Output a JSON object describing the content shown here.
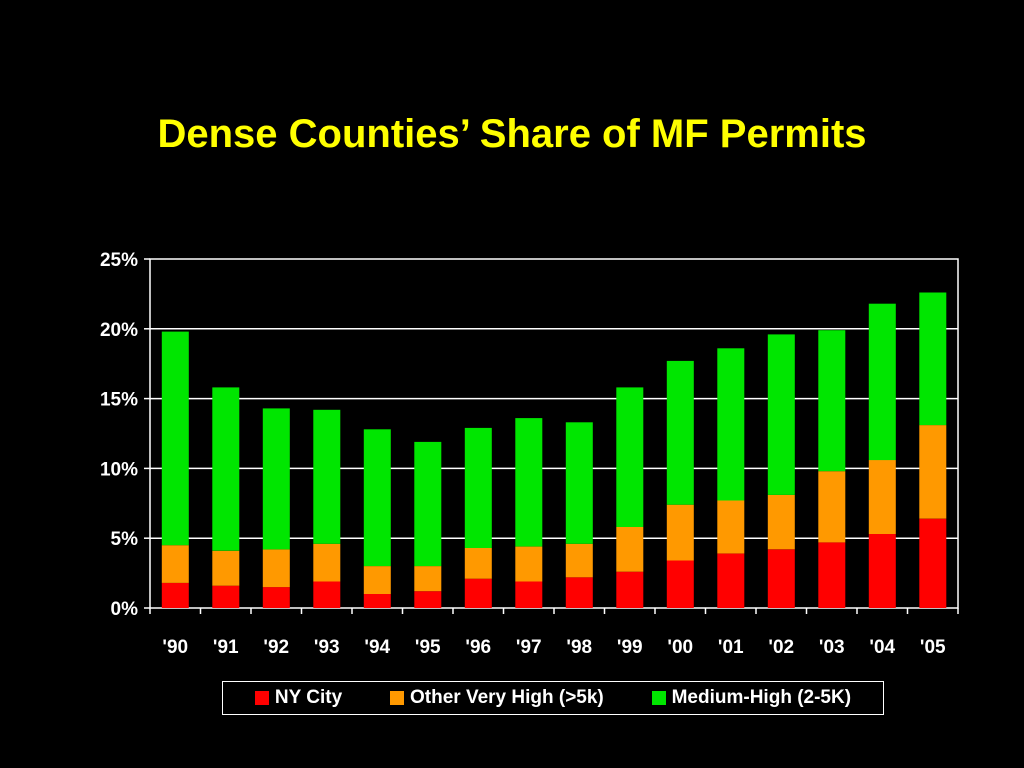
{
  "slide": {
    "title": "Dense Counties’ Share of MF Permits"
  },
  "chart_data": {
    "type": "bar",
    "stacked": true,
    "title": "",
    "xlabel": "",
    "ylabel": "",
    "categories": [
      "'90",
      "'91",
      "'92",
      "'93",
      "'94",
      "'95",
      "'96",
      "'97",
      "'98",
      "'99",
      "'00",
      "'01",
      "'02",
      "'03",
      "'04",
      "'05"
    ],
    "ylim": [
      0,
      25
    ],
    "yticks": [
      0,
      5,
      10,
      15,
      20,
      25
    ],
    "ytick_labels": [
      "0%",
      "5%",
      "10%",
      "15%",
      "20%",
      "25%"
    ],
    "grid": true,
    "legend_position": "bottom",
    "series": [
      {
        "name": "NY City",
        "color": "#ff0000",
        "values": [
          1.8,
          1.6,
          1.5,
          1.9,
          1.0,
          1.2,
          2.1,
          1.9,
          2.2,
          2.6,
          3.4,
          3.9,
          4.2,
          4.7,
          5.3,
          6.4
        ]
      },
      {
        "name": "Other Very High (>5k)",
        "color": "#ff9900",
        "values": [
          2.7,
          2.5,
          2.7,
          2.7,
          2.0,
          1.8,
          2.2,
          2.5,
          2.4,
          3.2,
          4.0,
          3.8,
          3.9,
          5.1,
          5.3,
          6.7
        ]
      },
      {
        "name": "Medium-High (2-5K)",
        "color": "#00e600",
        "values": [
          15.3,
          11.7,
          10.1,
          9.6,
          9.8,
          8.9,
          8.6,
          9.2,
          8.7,
          10.0,
          10.3,
          10.9,
          11.5,
          10.1,
          11.2,
          9.5
        ]
      }
    ]
  }
}
